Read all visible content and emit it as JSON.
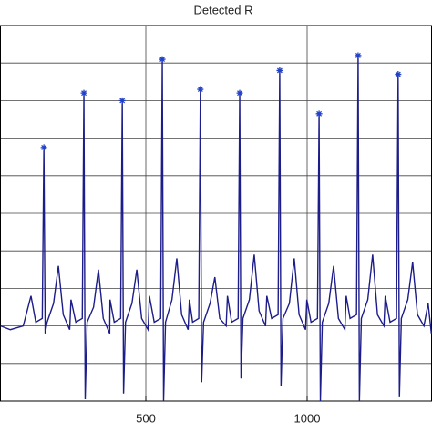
{
  "chart_data": {
    "type": "line",
    "title": "Detected R",
    "xlim": [
      48,
      1387
    ],
    "xticks": [
      500,
      1000
    ],
    "ylim": [
      0,
      10
    ],
    "yticks": [
      1,
      2,
      3,
      4,
      5,
      6,
      7,
      8,
      9,
      10
    ],
    "grid": true,
    "signal": {
      "color": "#1c1c8a",
      "x": [
        50,
        80,
        120,
        144,
        159,
        179,
        184,
        188,
        194,
        214,
        229,
        244,
        264,
        268,
        283,
        303,
        308,
        312,
        318,
        338,
        353,
        368,
        388,
        389,
        402,
        422,
        427,
        431,
        437,
        457,
        472,
        487,
        507,
        511,
        526,
        546,
        551,
        555,
        561,
        581,
        596,
        611,
        631,
        635,
        645,
        664,
        669,
        673,
        679,
        699,
        714,
        729,
        749,
        753,
        766,
        786,
        791,
        795,
        801,
        821,
        836,
        851,
        871,
        875,
        890,
        910,
        915,
        919,
        925,
        945,
        960,
        975,
        995,
        999,
        1012,
        1032,
        1037,
        1041,
        1047,
        1067,
        1082,
        1097,
        1117,
        1121,
        1133,
        1153,
        1158,
        1162,
        1168,
        1188,
        1203,
        1218,
        1238,
        1242,
        1257,
        1277,
        1282,
        1286,
        1292,
        1312,
        1327,
        1342,
        1362,
        1375,
        1385
      ],
      "y": [
        2.0,
        1.9,
        2.0,
        2.8,
        2.1,
        2.2,
        6.75,
        1.8,
        2.1,
        2.6,
        3.6,
        2.3,
        1.9,
        2.7,
        2.1,
        2.2,
        8.2,
        0.05,
        2.1,
        2.5,
        3.5,
        2.2,
        1.8,
        2.7,
        2.1,
        2.2,
        8.0,
        0.2,
        2.1,
        2.6,
        3.5,
        2.2,
        1.9,
        2.8,
        2.1,
        2.2,
        9.1,
        0.0,
        2.1,
        2.7,
        3.8,
        2.3,
        1.9,
        2.7,
        2.1,
        2.2,
        8.3,
        0.5,
        2.1,
        2.6,
        3.3,
        2.2,
        2.0,
        2.8,
        2.1,
        2.2,
        8.2,
        0.6,
        2.2,
        2.7,
        3.9,
        2.4,
        2.0,
        2.8,
        2.2,
        2.3,
        8.8,
        0.4,
        2.2,
        2.6,
        3.8,
        2.3,
        1.9,
        2.7,
        2.1,
        2.2,
        7.65,
        0.0,
        2.1,
        2.6,
        3.6,
        2.2,
        1.9,
        2.8,
        2.2,
        2.3,
        9.2,
        0.0,
        2.2,
        2.7,
        3.9,
        2.3,
        2.0,
        2.8,
        2.1,
        2.2,
        8.7,
        0.1,
        2.2,
        2.7,
        3.7,
        2.3,
        2.0,
        2.6,
        1.8
      ]
    },
    "peaks": {
      "color": "#2040c8",
      "x": [
        184,
        308,
        427,
        551,
        669,
        791,
        915,
        1037,
        1158,
        1282
      ],
      "y": [
        6.75,
        8.2,
        8.0,
        9.1,
        8.3,
        8.2,
        8.8,
        7.65,
        9.2,
        8.7
      ]
    }
  }
}
